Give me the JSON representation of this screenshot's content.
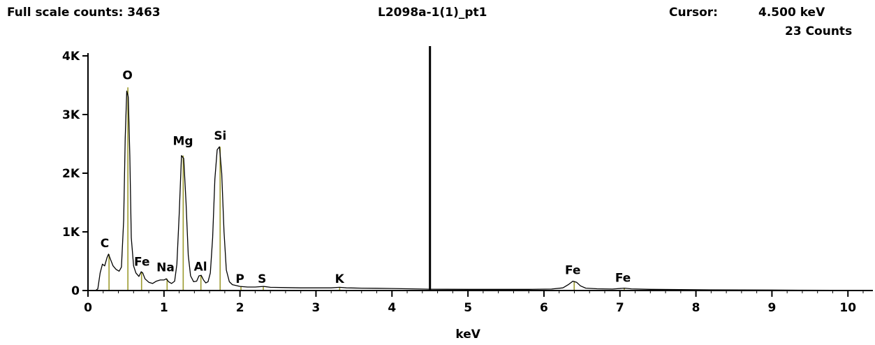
{
  "header": {
    "full_scale": "Full scale counts: 3463",
    "spectrum_name": "L2098a-1(1)_pt1",
    "cursor_label": "Cursor:",
    "cursor_energy": "4.500 keV",
    "cursor_counts": "23 Counts"
  },
  "chart_data": {
    "type": "line",
    "title": "L2098a-1(1)_pt1",
    "xlabel": "keV",
    "ylabel": "",
    "xlim": [
      0,
      10.2
    ],
    "ylim": [
      0,
      4000
    ],
    "x_ticks": [
      0,
      1,
      2,
      3,
      4,
      5,
      6,
      7,
      8,
      9,
      10
    ],
    "y_ticks": [
      {
        "value": 0,
        "label": "0"
      },
      {
        "value": 1000,
        "label": "1K"
      },
      {
        "value": 2000,
        "label": "2K"
      },
      {
        "value": 3000,
        "label": "3K"
      },
      {
        "value": 4000,
        "label": "4K"
      }
    ],
    "full_scale_counts": 3463,
    "cursor_kev": 4.5,
    "cursor_counts": 23,
    "spectrum_color": "#000000",
    "marker_color": "#9c9a2e",
    "series": [
      {
        "points": [
          [
            0.0,
            0
          ],
          [
            0.1,
            0
          ],
          [
            0.13,
            30
          ],
          [
            0.16,
            300
          ],
          [
            0.19,
            450
          ],
          [
            0.22,
            420
          ],
          [
            0.25,
            560
          ],
          [
            0.27,
            620
          ],
          [
            0.3,
            520
          ],
          [
            0.33,
            420
          ],
          [
            0.37,
            360
          ],
          [
            0.41,
            330
          ],
          [
            0.44,
            400
          ],
          [
            0.47,
            1200
          ],
          [
            0.49,
            2600
          ],
          [
            0.51,
            3400
          ],
          [
            0.53,
            3300
          ],
          [
            0.55,
            2300
          ],
          [
            0.57,
            900
          ],
          [
            0.6,
            420
          ],
          [
            0.63,
            300
          ],
          [
            0.67,
            240
          ],
          [
            0.7,
            320
          ],
          [
            0.72,
            300
          ],
          [
            0.75,
            200
          ],
          [
            0.8,
            140
          ],
          [
            0.85,
            120
          ],
          [
            0.9,
            160
          ],
          [
            0.95,
            180
          ],
          [
            1.0,
            180
          ],
          [
            1.03,
            200
          ],
          [
            1.06,
            150
          ],
          [
            1.1,
            120
          ],
          [
            1.14,
            160
          ],
          [
            1.17,
            450
          ],
          [
            1.2,
            1300
          ],
          [
            1.23,
            2300
          ],
          [
            1.26,
            2250
          ],
          [
            1.29,
            1500
          ],
          [
            1.32,
            600
          ],
          [
            1.35,
            250
          ],
          [
            1.39,
            150
          ],
          [
            1.43,
            160
          ],
          [
            1.46,
            250
          ],
          [
            1.49,
            260
          ],
          [
            1.52,
            180
          ],
          [
            1.55,
            130
          ],
          [
            1.58,
            150
          ],
          [
            1.61,
            300
          ],
          [
            1.64,
            900
          ],
          [
            1.67,
            1900
          ],
          [
            1.7,
            2400
          ],
          [
            1.73,
            2450
          ],
          [
            1.76,
            2000
          ],
          [
            1.79,
            1000
          ],
          [
            1.82,
            350
          ],
          [
            1.86,
            150
          ],
          [
            1.9,
            100
          ],
          [
            2.0,
            70
          ],
          [
            2.1,
            60
          ],
          [
            2.2,
            60
          ],
          [
            2.31,
            70
          ],
          [
            2.4,
            55
          ],
          [
            2.6,
            50
          ],
          [
            2.8,
            45
          ],
          [
            3.0,
            45
          ],
          [
            3.2,
            45
          ],
          [
            3.31,
            55
          ],
          [
            3.4,
            45
          ],
          [
            3.6,
            40
          ],
          [
            3.8,
            38
          ],
          [
            4.0,
            35
          ],
          [
            4.2,
            30
          ],
          [
            4.4,
            25
          ],
          [
            4.5,
            23
          ],
          [
            4.7,
            22
          ],
          [
            5.0,
            20
          ],
          [
            5.4,
            20
          ],
          [
            5.8,
            20
          ],
          [
            6.1,
            25
          ],
          [
            6.25,
            45
          ],
          [
            6.32,
            100
          ],
          [
            6.38,
            160
          ],
          [
            6.43,
            140
          ],
          [
            6.48,
            80
          ],
          [
            6.55,
            40
          ],
          [
            6.7,
            30
          ],
          [
            6.9,
            25
          ],
          [
            7.06,
            40
          ],
          [
            7.15,
            28
          ],
          [
            7.4,
            20
          ],
          [
            7.8,
            15
          ],
          [
            8.2,
            12
          ],
          [
            8.6,
            10
          ],
          [
            9.0,
            8
          ],
          [
            9.4,
            6
          ],
          [
            9.8,
            5
          ],
          [
            10.2,
            5
          ]
        ]
      }
    ],
    "peaks": [
      {
        "label": "C",
        "kev": 0.277,
        "height": 620
      },
      {
        "label": "O",
        "kev": 0.525,
        "height": 3463
      },
      {
        "label": "Fe",
        "kev": 0.705,
        "height": 310
      },
      {
        "label": "Na",
        "kev": 1.041,
        "height": 200
      },
      {
        "label": "Mg",
        "kev": 1.253,
        "height": 2300
      },
      {
        "label": "Al",
        "kev": 1.486,
        "height": 260
      },
      {
        "label": "Si",
        "kev": 1.739,
        "height": 2450
      },
      {
        "label": "P",
        "kev": 2.013,
        "height": 65
      },
      {
        "label": "S",
        "kev": 2.307,
        "height": 70
      },
      {
        "label": "K",
        "kev": 3.312,
        "height": 55
      },
      {
        "label": "Fe",
        "kev": 6.398,
        "height": 160
      },
      {
        "label": "Fe",
        "kev": 7.057,
        "height": 40
      }
    ],
    "peak_label_positions": [
      {
        "label": "C",
        "kev": 0.22,
        "counts": 740
      },
      {
        "label": "O",
        "kev": 0.52,
        "counts": 3600
      },
      {
        "label": "Fe",
        "kev": 0.71,
        "counts": 420
      },
      {
        "label": "Na",
        "kev": 1.02,
        "counts": 330
      },
      {
        "label": "Mg",
        "kev": 1.25,
        "counts": 2480
      },
      {
        "label": "Al",
        "kev": 1.48,
        "counts": 340
      },
      {
        "label": "Si",
        "kev": 1.74,
        "counts": 2570
      },
      {
        "label": "P",
        "kev": 2.0,
        "counts": 130
      },
      {
        "label": "S",
        "kev": 2.29,
        "counts": 130
      },
      {
        "label": "K",
        "kev": 3.31,
        "counts": 130
      },
      {
        "label": "Fe",
        "kev": 6.38,
        "counts": 280
      },
      {
        "label": "Fe",
        "kev": 7.04,
        "counts": 150
      }
    ]
  }
}
